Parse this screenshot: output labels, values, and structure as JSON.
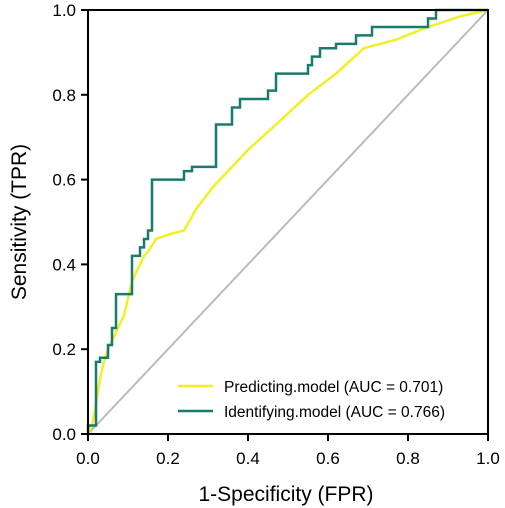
{
  "chart_data": {
    "type": "line",
    "title": "",
    "xlabel": "1-Specificity (FPR)",
    "ylabel": "Sensitivity (TPR)",
    "xlim": [
      0,
      1
    ],
    "ylim": [
      0,
      1
    ],
    "x_ticks": [
      "0.0",
      "0.2",
      "0.4",
      "0.6",
      "0.8",
      "1.0"
    ],
    "y_ticks": [
      "0.0",
      "0.2",
      "0.4",
      "0.6",
      "0.8",
      "1.0"
    ],
    "grid": false,
    "legend_position": "bottom-right",
    "reference_line": {
      "from": [
        0,
        0
      ],
      "to": [
        1,
        1
      ],
      "color": "#bbbbbb"
    },
    "series": [
      {
        "name": "Predicting.model (AUC = 0.701)",
        "color": "#f0f025",
        "points": [
          [
            0,
            0
          ],
          [
            0.01,
            0.02
          ],
          [
            0.02,
            0.07
          ],
          [
            0.03,
            0.13
          ],
          [
            0.04,
            0.17
          ],
          [
            0.05,
            0.2
          ],
          [
            0.07,
            0.24
          ],
          [
            0.09,
            0.28
          ],
          [
            0.1,
            0.32
          ],
          [
            0.11,
            0.36
          ],
          [
            0.12,
            0.38
          ],
          [
            0.13,
            0.4
          ],
          [
            0.14,
            0.42
          ],
          [
            0.15,
            0.43
          ],
          [
            0.17,
            0.46
          ],
          [
            0.2,
            0.47
          ],
          [
            0.24,
            0.48
          ],
          [
            0.27,
            0.53
          ],
          [
            0.31,
            0.58
          ],
          [
            0.34,
            0.61
          ],
          [
            0.4,
            0.67
          ],
          [
            0.47,
            0.73
          ],
          [
            0.55,
            0.8
          ],
          [
            0.62,
            0.85
          ],
          [
            0.69,
            0.91
          ],
          [
            0.77,
            0.93
          ],
          [
            0.85,
            0.96
          ],
          [
            0.93,
            0.985
          ],
          [
            1.0,
            1.0
          ]
        ]
      },
      {
        "name": "Identifying.model (AUC = 0.766)",
        "color": "#1b7a6e",
        "points": [
          [
            0,
            0
          ],
          [
            0,
            0.02
          ],
          [
            0.02,
            0.02
          ],
          [
            0.02,
            0.17
          ],
          [
            0.03,
            0.17
          ],
          [
            0.03,
            0.18
          ],
          [
            0.05,
            0.18
          ],
          [
            0.05,
            0.21
          ],
          [
            0.06,
            0.21
          ],
          [
            0.06,
            0.25
          ],
          [
            0.07,
            0.25
          ],
          [
            0.07,
            0.33
          ],
          [
            0.11,
            0.33
          ],
          [
            0.11,
            0.42
          ],
          [
            0.13,
            0.42
          ],
          [
            0.13,
            0.44
          ],
          [
            0.14,
            0.44
          ],
          [
            0.14,
            0.46
          ],
          [
            0.15,
            0.46
          ],
          [
            0.15,
            0.48
          ],
          [
            0.16,
            0.48
          ],
          [
            0.16,
            0.6
          ],
          [
            0.24,
            0.6
          ],
          [
            0.24,
            0.62
          ],
          [
            0.26,
            0.62
          ],
          [
            0.26,
            0.63
          ],
          [
            0.32,
            0.63
          ],
          [
            0.32,
            0.73
          ],
          [
            0.36,
            0.73
          ],
          [
            0.36,
            0.77
          ],
          [
            0.38,
            0.77
          ],
          [
            0.38,
            0.79
          ],
          [
            0.45,
            0.79
          ],
          [
            0.45,
            0.81
          ],
          [
            0.47,
            0.81
          ],
          [
            0.47,
            0.85
          ],
          [
            0.55,
            0.85
          ],
          [
            0.55,
            0.87
          ],
          [
            0.56,
            0.87
          ],
          [
            0.56,
            0.89
          ],
          [
            0.58,
            0.89
          ],
          [
            0.58,
            0.91
          ],
          [
            0.62,
            0.91
          ],
          [
            0.62,
            0.92
          ],
          [
            0.67,
            0.92
          ],
          [
            0.67,
            0.94
          ],
          [
            0.71,
            0.94
          ],
          [
            0.71,
            0.96
          ],
          [
            0.85,
            0.96
          ],
          [
            0.85,
            0.98
          ],
          [
            0.87,
            0.98
          ],
          [
            0.87,
            1.0
          ],
          [
            1.0,
            1.0
          ]
        ]
      }
    ]
  }
}
